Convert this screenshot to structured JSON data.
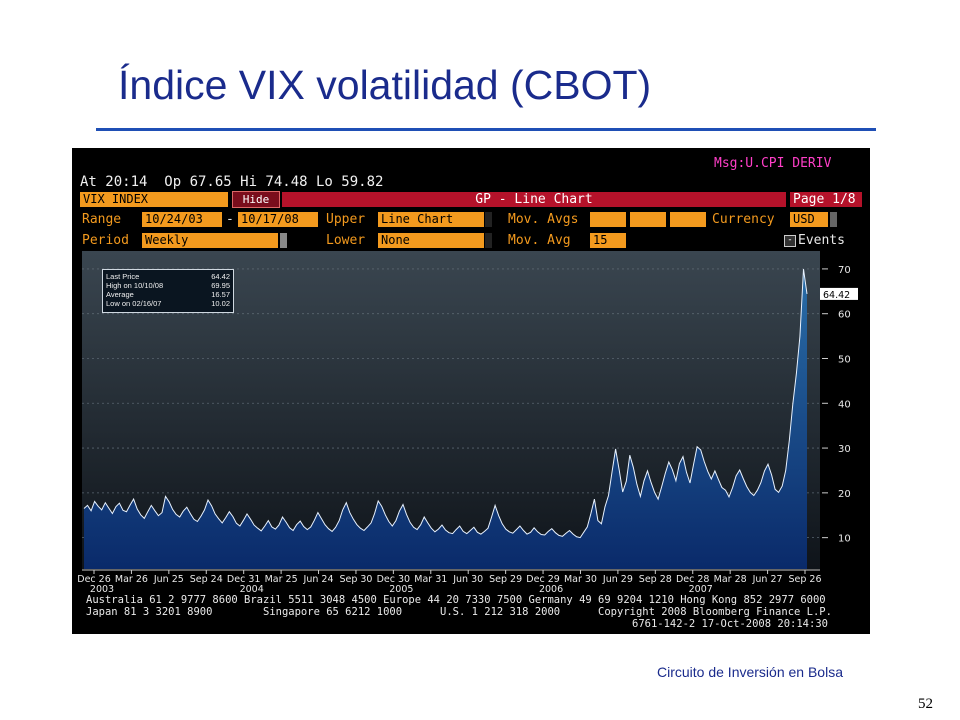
{
  "slide": {
    "title": "Índice VIX volatilidad (CBOT)",
    "credit": "Circuito de Inversión en Bolsa",
    "page_number": "52"
  },
  "terminal": {
    "msg": "Msg:U.CPI DERIV",
    "quote": "At 20:14  Op 67.65 Hi 74.48 Lo 59.82",
    "ticker": "VIX INDEX",
    "hide_label": "Hide",
    "chart_title": "GP - Line Chart",
    "page": "Page 1/8",
    "range_label": "Range",
    "range_start": "10/24/03",
    "range_dash": "-",
    "range_end": "10/17/08",
    "upper_label": "Upper",
    "upper_value": "Line Chart",
    "movavgs_label": "Mov. Avgs",
    "currency_label": "Currency",
    "currency_value": "USD",
    "period_label": "Period",
    "period_value": "Weekly",
    "lower_label": "Lower",
    "lower_value": "None",
    "movavg_label": "Mov. Avg",
    "movavg_value": "15",
    "events_label": "Events",
    "events_box": "-",
    "footer_line1": "Australia 61 2 9777 8600 Brazil 5511 3048 4500 Europe 44 20 7330 7500 Germany 49 69 9204 1210 Hong Kong 852 2977 6000",
    "footer_line2": "Japan 81 3 3201 8900        Singapore 65 6212 1000      U.S. 1 212 318 2000      Copyright 2008 Bloomberg Finance L.P.",
    "footer_line3": "6761-142-2 17-Oct-2008 20:14:30"
  },
  "legend": {
    "rows": [
      {
        "label": "Last Price",
        "value": "64.42"
      },
      {
        "label": "High on 10/10/08",
        "value": "69.95"
      },
      {
        "label": "Average",
        "value": "16.57"
      },
      {
        "label": "Low on 02/16/07",
        "value": "10.02"
      }
    ]
  },
  "chart_data": {
    "type": "area",
    "title": "GP - Line Chart",
    "ylim": [
      3,
      74
    ],
    "y_ticks": [
      "10",
      "20",
      "30",
      "40",
      "50",
      "60",
      "70"
    ],
    "last_price_tag": "64.42",
    "x_ticks": [
      "Dec 26",
      "Mar 26",
      "Jun 25",
      "Sep 24",
      "Dec 31",
      "Mar 25",
      "Jun 24",
      "Sep 30",
      "Dec 30",
      "Mar 31",
      "Jun 30",
      "Sep 29",
      "Dec 29",
      "Mar 30",
      "Jun 29",
      "Sep 28",
      "Dec 28",
      "Mar 28",
      "Jun 27",
      "Sep 26"
    ],
    "year_labels": [
      "2003",
      "2004",
      "2005",
      "2006",
      "2007"
    ],
    "grid": true,
    "colors": {
      "fill_bottom": "#0a2a6a",
      "fill_top": "#2a6ea8",
      "line": "#e8f2ff",
      "last_segment": "#4fc6e8"
    },
    "series": [
      {
        "values": [
          16.5,
          17.2,
          16.0,
          18.1,
          17.0,
          16.2,
          17.8,
          16.6,
          15.4,
          16.9,
          17.7,
          16.1,
          15.8,
          17.3,
          18.6,
          16.4,
          15.1,
          14.3,
          15.8,
          17.2,
          16.0,
          14.9,
          15.6,
          19.2,
          18.0,
          16.3,
          15.2,
          14.6,
          15.9,
          16.8,
          15.4,
          14.1,
          13.6,
          14.8,
          16.2,
          18.4,
          17.1,
          15.3,
          14.2,
          13.3,
          14.5,
          15.8,
          14.7,
          13.2,
          12.6,
          13.9,
          15.3,
          14.1,
          12.8,
          12.1,
          11.5,
          12.6,
          13.8,
          12.4,
          11.9,
          12.8,
          14.6,
          13.5,
          12.2,
          11.6,
          12.9,
          13.7,
          12.5,
          11.8,
          12.4,
          13.9,
          15.6,
          14.2,
          12.9,
          12.0,
          11.4,
          12.3,
          13.8,
          16.2,
          17.8,
          15.6,
          14.1,
          12.9,
          12.1,
          11.6,
          12.4,
          13.3,
          15.4,
          18.2,
          17.0,
          15.1,
          13.6,
          12.6,
          13.8,
          15.9,
          17.4,
          15.2,
          13.4,
          12.3,
          11.8,
          12.9,
          14.6,
          13.3,
          12.1,
          11.3,
          11.9,
          12.8,
          11.7,
          11.1,
          10.9,
          11.8,
          12.6,
          11.4,
          10.9,
          11.6,
          12.3,
          11.2,
          10.8,
          11.4,
          12.1,
          14.6,
          17.2,
          14.9,
          13.1,
          11.9,
          11.3,
          11.0,
          11.8,
          12.6,
          11.6,
          10.8,
          11.2,
          12.2,
          11.3,
          10.7,
          10.6,
          11.4,
          12.0,
          11.1,
          10.5,
          10.3,
          11.0,
          11.6,
          10.8,
          10.2,
          10.0,
          11.2,
          12.4,
          15.3,
          18.6,
          13.8,
          13.1,
          16.9,
          19.4,
          24.8,
          29.8,
          25.1,
          20.2,
          22.6,
          28.4,
          25.7,
          21.9,
          19.2,
          22.7,
          24.9,
          22.3,
          20.1,
          18.6,
          21.4,
          24.3,
          26.9,
          25.2,
          22.7,
          26.5,
          28.1,
          24.6,
          22.2,
          26.4,
          30.3,
          29.6,
          27.0,
          24.8,
          23.1,
          24.9,
          23.0,
          21.2,
          20.6,
          19.1,
          21.2,
          23.8,
          25.1,
          23.2,
          21.4,
          20.1,
          19.4,
          20.6,
          22.3,
          24.9,
          26.4,
          24.0,
          20.8,
          20.1,
          21.5,
          25.0,
          31.7,
          39.8,
          46.7,
          54.9,
          69.95,
          64.42
        ]
      }
    ]
  }
}
